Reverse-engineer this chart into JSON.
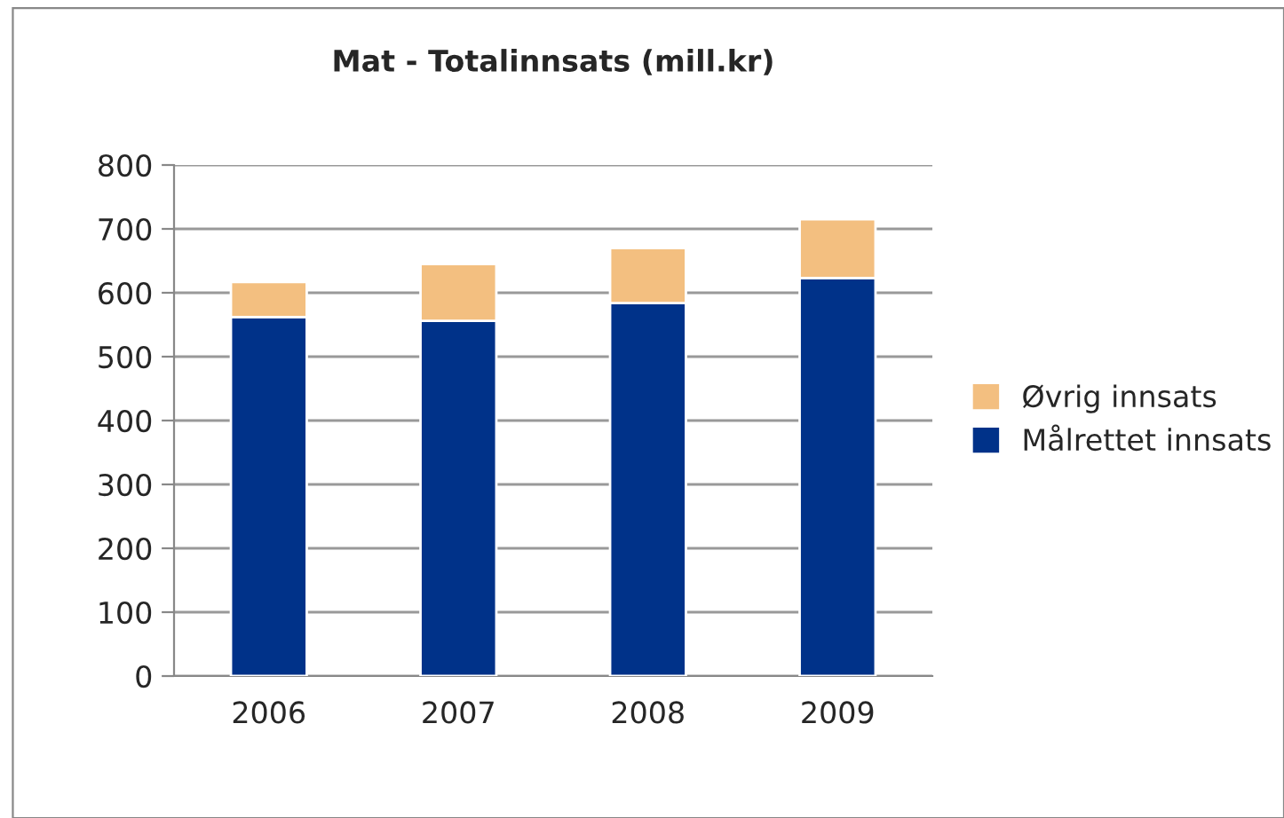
{
  "chart_data": {
    "type": "bar",
    "title": "Mat - Totalinnsats (mill.kr)",
    "categories": [
      "2006",
      "2007",
      "2008",
      "2009"
    ],
    "stacked": true,
    "series": [
      {
        "name": "Målrettet innsats",
        "color": "#003289",
        "values": [
          562,
          556,
          584,
          623
        ]
      },
      {
        "name": "Øvrig innsats",
        "color": "#f3bf80",
        "values": [
          55,
          89,
          86,
          92
        ]
      }
    ],
    "ylim": [
      0,
      800
    ],
    "yticks": [
      0,
      100,
      200,
      300,
      400,
      500,
      600,
      700,
      800
    ],
    "grid": "y",
    "legend": "right"
  }
}
